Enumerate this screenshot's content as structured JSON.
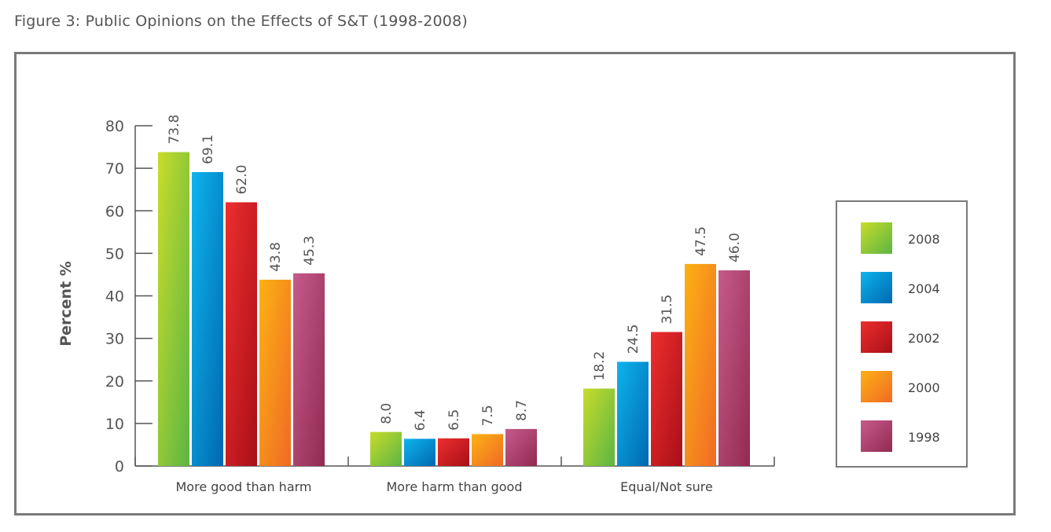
{
  "figure_title": "Figure 3: Public Opinions on the Effects of S&T (1998-2008)",
  "chart_data": {
    "type": "bar",
    "title": "",
    "ylabel": "Percent %",
    "xlabel": "",
    "ylim": [
      0,
      80
    ],
    "yticks": [
      0,
      10,
      20,
      30,
      40,
      50,
      60,
      70,
      80
    ],
    "grid": false,
    "legend_position": "right",
    "categories": [
      "More good than harm",
      "More harm than good",
      "Equal/Not sure"
    ],
    "series": [
      {
        "name": "2008",
        "values": [
          73.8,
          8.0,
          18.2
        ],
        "labels": [
          "73.8",
          "8.0",
          "18.2"
        ],
        "color_light": "#c8dc2a",
        "color_dark": "#5bb544"
      },
      {
        "name": "2004",
        "values": [
          69.1,
          6.4,
          24.5
        ],
        "labels": [
          "69.1",
          "6.4",
          "24.5"
        ],
        "color_light": "#0eb4ee",
        "color_dark": "#0068b0"
      },
      {
        "name": "2002",
        "values": [
          62.0,
          6.5,
          31.5
        ],
        "labels": [
          "62.0",
          "6.5",
          "31.5"
        ],
        "color_light": "#ee2e2e",
        "color_dark": "#a80f18"
      },
      {
        "name": "2000",
        "values": [
          43.8,
          7.5,
          47.5
        ],
        "labels": [
          "43.8",
          "7.5",
          "47.5"
        ],
        "color_light": "#fcb114",
        "color_dark": "#f06a25"
      },
      {
        "name": "1998",
        "values": [
          45.3,
          8.7,
          46.0
        ],
        "labels": [
          "45.3",
          "8.7",
          "46.0"
        ],
        "color_light": "#c65b8c",
        "color_dark": "#922a50"
      }
    ],
    "axis_color": "#555555"
  }
}
